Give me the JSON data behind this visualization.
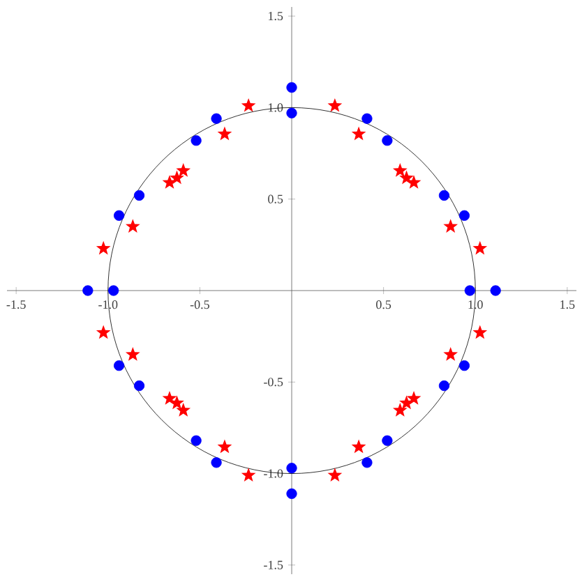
{
  "chart_data": {
    "type": "scatter",
    "xlim": [
      -1.55,
      1.55
    ],
    "ylim": [
      -1.55,
      1.55
    ],
    "xticks": [
      -1.5,
      {
        "value": -1,
        "label": "-1.0"
      },
      -0.5,
      0.5,
      {
        "value": 1,
        "label": "1.0"
      },
      1.5
    ],
    "yticks": [
      -1.5,
      {
        "value": -1,
        "label": "-1.0"
      },
      -0.5,
      0.5,
      {
        "value": 1,
        "label": "1.0"
      },
      1.5
    ],
    "grid": false,
    "series": [
      {
        "color": "#0000ff",
        "marker": "circle",
        "x": [
          0,
          0,
          0,
          0,
          0.97,
          1.11,
          -0.97,
          -1.11,
          0.41,
          0.52,
          0.83,
          0.94,
          -0.41,
          -0.52,
          -0.83,
          -0.94,
          -0.41,
          -0.52,
          -0.83,
          -0.94,
          0.41,
          0.52,
          0.83,
          0.94
        ],
        "values": [
          1.11,
          0.97,
          -0.97,
          -1.11,
          0,
          0,
          0,
          0,
          0.94,
          0.82,
          0.52,
          0.41,
          0.94,
          0.82,
          0.52,
          0.41,
          -0.94,
          -0.82,
          -0.52,
          -0.41,
          -0.94,
          -0.82,
          -0.52,
          -0.41
        ]
      },
      {
        "color": "#ff0000",
        "marker": "star",
        "x": [
          0.235,
          0.365,
          0.59,
          0.625,
          0.665,
          0.865,
          1.025,
          -0.235,
          -0.365,
          -0.59,
          -0.625,
          -0.665,
          -0.865,
          -1.025,
          -0.235,
          -0.365,
          -0.59,
          -0.625,
          -0.665,
          -0.865,
          -1.025,
          0.235,
          0.365,
          0.59,
          0.625,
          0.665,
          0.865,
          1.025
        ],
        "values": [
          1.01,
          0.855,
          0.655,
          0.615,
          0.59,
          0.35,
          0.23,
          1.01,
          0.855,
          0.655,
          0.615,
          0.59,
          0.35,
          0.23,
          -1.01,
          -0.855,
          -0.655,
          -0.615,
          -0.59,
          -0.35,
          -0.23,
          -1.01,
          -0.855,
          -0.655,
          -0.615,
          -0.59,
          -0.35,
          -0.23
        ]
      }
    ]
  }
}
